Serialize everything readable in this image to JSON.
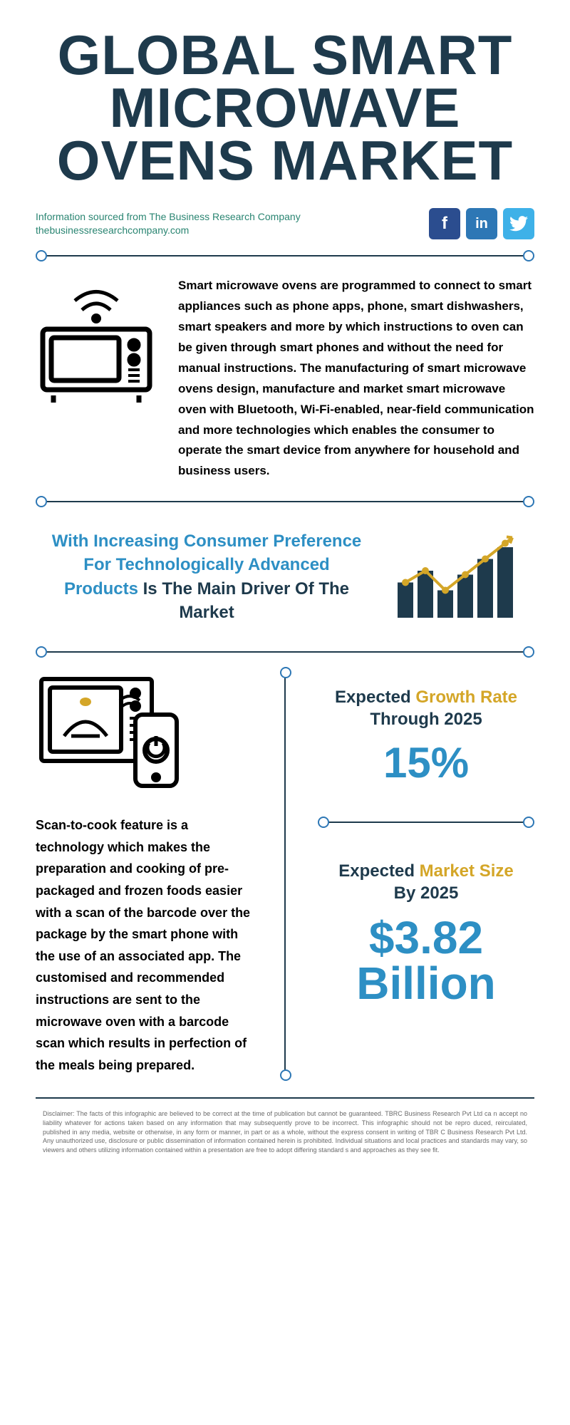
{
  "title": "GLOBAL SMART MICROWAVE OVENS MARKET",
  "source": {
    "line1": "Information sourced from The Business Research Company",
    "line2": "thebusinessresearchcompany.com"
  },
  "colors": {
    "title": "#1e3a4c",
    "teal": "#2a8572",
    "blue": "#2d8fc4",
    "gold": "#d4a628",
    "dark": "#1e3a4c",
    "facebook": "#2b4d8f",
    "linkedin": "#2d77b5",
    "twitter": "#3eb1e8"
  },
  "intro": " Smart microwave ovens are programmed to connect to smart appliances such as phone apps, phone, smart dishwashers, smart speakers and more by which instructions to oven can be given through smart phones and without the need for manual instructions. The manufacturing of smart microwave ovens design, manufacture and market smart microwave oven with Bluetooth, Wi-Fi-enabled, near-field communication and more technologies which enables the consumer to operate the smart device from anywhere for household and business users.",
  "driver": {
    "highlight": "With Increasing Consumer Preference For Technologically Advanced Products",
    "rest": " Is The Main Driver Of The Market"
  },
  "bar_chart": {
    "bars": [
      0.45,
      0.6,
      0.35,
      0.55,
      0.75,
      0.9
    ],
    "bar_color": "#1e3a4c",
    "line_color": "#d4a628",
    "line_points": [
      0.45,
      0.6,
      0.35,
      0.55,
      0.75,
      0.95
    ]
  },
  "scan_text": "Scan-to-cook feature is a technology which makes the preparation and cooking of pre-packaged and frozen foods easier with a scan of the barcode over the package by the smart phone with the use of an associated app. The customised and recommended instructions are sent to the microwave oven with a barcode scan which results in perfection of the meals being prepared.",
  "stats": {
    "growth": {
      "label_pre": "Expected ",
      "label_highlight": "Growth Rate",
      "label_post": "Through 2025",
      "value": "15%"
    },
    "market": {
      "label_pre": "Expected ",
      "label_highlight": "Market Size",
      "label_post": "By 2025",
      "value": "$3.82 Billion"
    }
  },
  "disclaimer": "Disclaimer: The facts of this infographic are believed to be correct at the time of publication but cannot be guaranteed. TBRC Business Research Pvt Ltd ca n accept no liability whatever for actions taken based on any information that may subsequently prove to be incorrect. This infographic should not be repro duced, reirculated, published in any media, website or otherwise, in any form or manner, in part or as a whole, without the express consent in writing of TBR C Business Research Pvt Ltd. Any unauthorized use, disclosure or public dissemination of information contained herein is prohibited. Individual situations and local practices and standards may vary, so viewers and others utilizing information contained within a presentation are free to adopt differing standard s and approaches as they see fit."
}
